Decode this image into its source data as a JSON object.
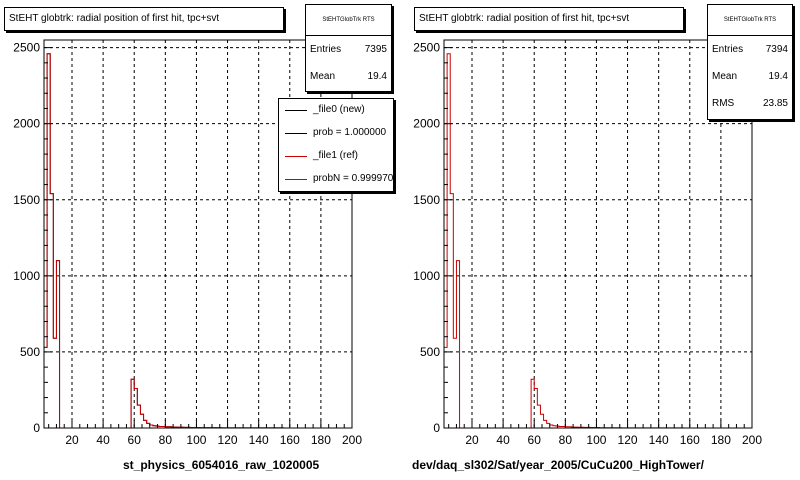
{
  "panels": [
    {
      "title": "StEHT globtrk: radial position of first hit, tpc+svt",
      "stats": {
        "header": "StEHTGlobTrk RTS",
        "rows": [
          {
            "label": "Entries",
            "value": "7395"
          },
          {
            "label": "Mean",
            "value": "19.4"
          }
        ]
      },
      "legend": [
        {
          "label": "_file0 (new)",
          "color": "#000000"
        },
        {
          "label": "prob = 1.000000",
          "color": "#000000"
        },
        {
          "label": "_file1 (ref)",
          "color": "#cc0000"
        },
        {
          "label": "probN = 0.999970",
          "color": "#cc0000"
        }
      ],
      "xlabel": "st_physics_6054016_raw_1020005"
    },
    {
      "title": "StEHT globtrk: radial position of first hit, tpc+svt",
      "stats": {
        "header": "StEHTGlobTrk RTS",
        "rows": [
          {
            "label": "Entries",
            "value": "7394"
          },
          {
            "label": "Mean",
            "value": "19.4"
          },
          {
            "label": "RMS",
            "value": "23.85"
          }
        ]
      },
      "legend": [],
      "xlabel": "dev/daq_sl302/Sat/year_2005/CuCu200_HighTower/"
    }
  ],
  "chart_data": [
    {
      "type": "bar",
      "title": "StEHT globtrk: radial position of first hit, tpc+svt",
      "xlim": [
        2,
        200
      ],
      "ylim": [
        0,
        2550
      ],
      "xticks": [
        20,
        40,
        60,
        80,
        100,
        120,
        140,
        160,
        180,
        200
      ],
      "yticks": [
        0,
        500,
        1000,
        1500,
        2000,
        2500
      ],
      "grid": true,
      "bin_width": 2,
      "bin_starts": [
        2,
        4,
        6,
        8,
        10,
        12,
        14,
        16,
        18,
        20,
        22,
        24,
        26,
        28,
        30,
        32,
        34,
        36,
        38,
        40,
        42,
        44,
        46,
        48,
        50,
        52,
        54,
        56,
        58,
        60,
        62,
        64,
        66,
        68,
        70,
        72,
        74,
        76,
        78,
        80,
        82,
        84,
        86,
        88,
        90,
        92,
        94,
        96,
        98,
        100,
        102,
        104,
        106,
        108,
        110,
        112,
        114,
        116,
        118,
        120,
        122,
        124,
        126,
        128,
        130,
        132,
        134,
        136,
        138,
        140,
        142,
        144,
        146,
        148,
        150,
        152,
        154,
        156,
        158,
        160,
        162,
        164,
        166,
        168,
        170,
        172,
        174,
        176,
        178,
        180,
        182,
        184,
        186,
        188,
        190,
        192,
        194,
        196,
        198
      ],
      "series": [
        {
          "name": "_file0 (new)",
          "color": "#000000",
          "values": [
            530,
            2460,
            1540,
            590,
            1100,
            0,
            0,
            0,
            0,
            0,
            0,
            0,
            0,
            0,
            0,
            0,
            0,
            0,
            0,
            0,
            0,
            0,
            0,
            0,
            0,
            0,
            0,
            0,
            320,
            260,
            150,
            90,
            50,
            30,
            20,
            15,
            12,
            10,
            10,
            8,
            8,
            6,
            6,
            5,
            5,
            4,
            4,
            3,
            3,
            3,
            2,
            2,
            2,
            2,
            2,
            2,
            2,
            1,
            1,
            1,
            1,
            1,
            1,
            1,
            1,
            1,
            1,
            1,
            1,
            1,
            1,
            1,
            1,
            1,
            1,
            1,
            1,
            0,
            0,
            0,
            0,
            0,
            0,
            0,
            0,
            0,
            0,
            0,
            0,
            0,
            0,
            0,
            0,
            0,
            0,
            0,
            0,
            0,
            0
          ]
        },
        {
          "name": "_file1 (ref)",
          "color": "#cc0000",
          "values": [
            530,
            2460,
            1540,
            590,
            1100,
            0,
            0,
            0,
            0,
            0,
            0,
            0,
            0,
            0,
            0,
            0,
            0,
            0,
            0,
            0,
            0,
            0,
            0,
            0,
            0,
            0,
            0,
            0,
            320,
            260,
            150,
            90,
            50,
            30,
            20,
            15,
            12,
            10,
            10,
            8,
            8,
            6,
            6,
            5,
            5,
            4,
            4,
            3,
            3,
            3,
            2,
            2,
            2,
            2,
            2,
            2,
            2,
            1,
            1,
            1,
            1,
            1,
            1,
            1,
            1,
            1,
            1,
            1,
            1,
            1,
            1,
            1,
            1,
            1,
            1,
            1,
            1,
            0,
            0,
            0,
            0,
            0,
            0,
            0,
            0,
            0,
            0,
            0,
            0,
            0,
            0,
            0,
            0,
            0,
            0,
            0,
            0,
            0,
            0
          ]
        }
      ]
    },
    {
      "type": "bar",
      "title": "StEHT globtrk: radial position of first hit, tpc+svt",
      "xlim": [
        2,
        200
      ],
      "ylim": [
        0,
        2550
      ],
      "xticks": [
        20,
        40,
        60,
        80,
        100,
        120,
        140,
        160,
        180,
        200
      ],
      "yticks": [
        0,
        500,
        1000,
        1500,
        2000,
        2500
      ],
      "grid": true,
      "bin_width": 2,
      "bin_starts": [
        2,
        4,
        6,
        8,
        10,
        12,
        14,
        16,
        18,
        20,
        22,
        24,
        26,
        28,
        30,
        32,
        34,
        36,
        38,
        40,
        42,
        44,
        46,
        48,
        50,
        52,
        54,
        56,
        58,
        60,
        62,
        64,
        66,
        68,
        70,
        72,
        74,
        76,
        78,
        80,
        82,
        84,
        86,
        88,
        90,
        92,
        94,
        96,
        98,
        100,
        102,
        104,
        106,
        108,
        110,
        112,
        114,
        116,
        118,
        120,
        122,
        124,
        126,
        128,
        130,
        132,
        134,
        136,
        138,
        140,
        142,
        144,
        146,
        148,
        150,
        152,
        154,
        156,
        158,
        160,
        162,
        164,
        166,
        168,
        170,
        172,
        174,
        176,
        178,
        180,
        182,
        184,
        186,
        188,
        190,
        192,
        194,
        196,
        198
      ],
      "series": [
        {
          "name": "_file1 (ref)",
          "color": "#cc0000",
          "values": [
            530,
            2460,
            1540,
            590,
            1100,
            0,
            0,
            0,
            0,
            0,
            0,
            0,
            0,
            0,
            0,
            0,
            0,
            0,
            0,
            0,
            0,
            0,
            0,
            0,
            0,
            0,
            0,
            0,
            320,
            260,
            150,
            90,
            50,
            30,
            20,
            15,
            12,
            10,
            10,
            8,
            8,
            6,
            6,
            5,
            5,
            4,
            4,
            3,
            3,
            3,
            2,
            2,
            2,
            2,
            2,
            2,
            2,
            1,
            1,
            1,
            1,
            1,
            1,
            1,
            1,
            1,
            1,
            1,
            1,
            1,
            1,
            1,
            1,
            1,
            1,
            1,
            1,
            0,
            0,
            0,
            0,
            0,
            0,
            0,
            0,
            0,
            0,
            0,
            0,
            0,
            0,
            0,
            0,
            0,
            0,
            0,
            0,
            0,
            0
          ]
        }
      ]
    }
  ]
}
